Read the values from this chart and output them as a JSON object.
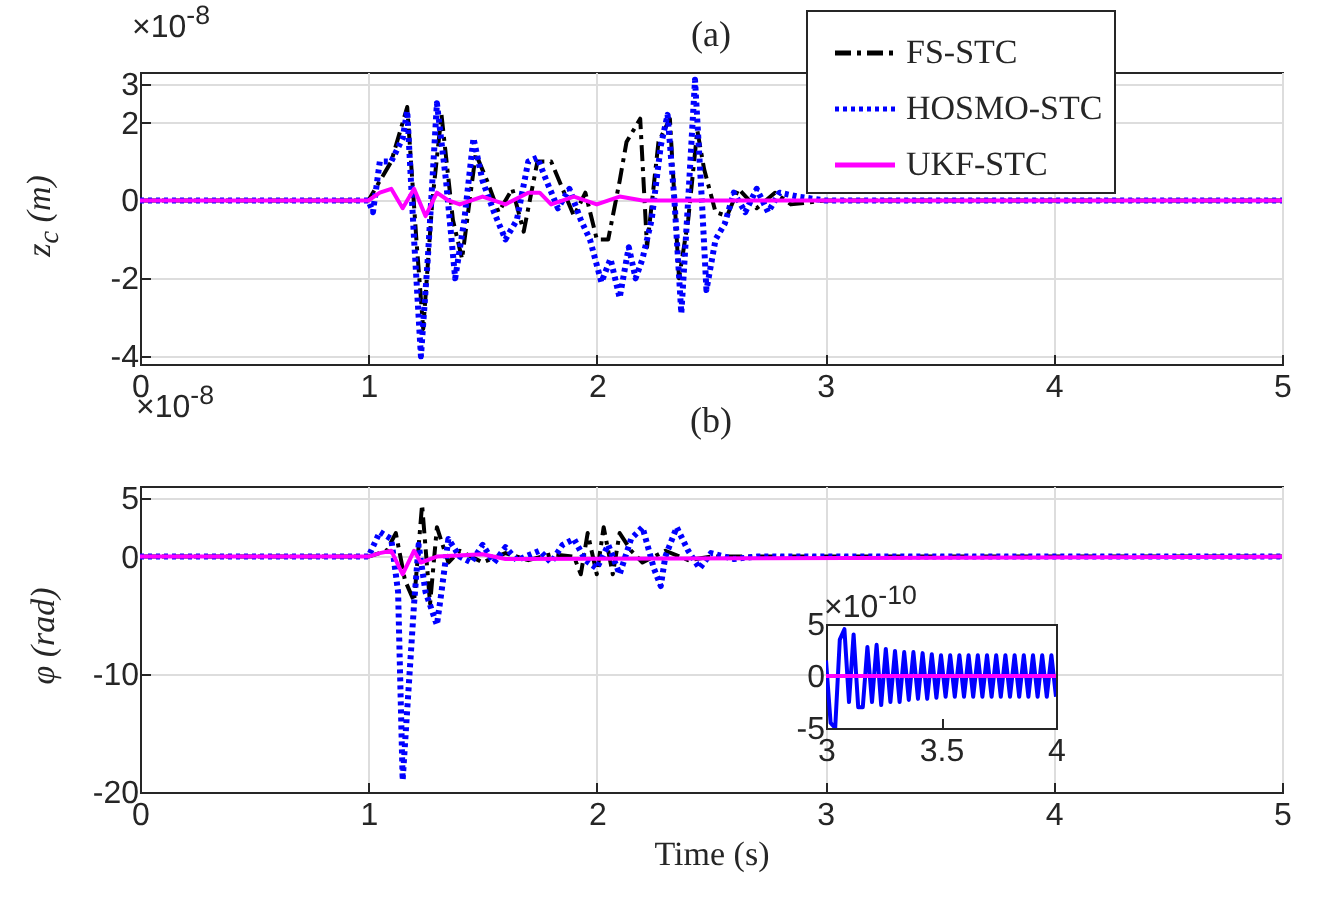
{
  "chart_data": [
    {
      "type": "line",
      "title": "(a)",
      "ylabel": "z$_{c}$ (m)",
      "annotations": [
        "×10$^{-8}$"
      ],
      "xlim": [
        0,
        5
      ],
      "xticks": [
        0,
        1,
        2,
        3,
        4,
        5
      ],
      "ylim": [
        -4.2,
        3.3
      ],
      "yticks": [
        -4,
        -2,
        0,
        2,
        3
      ],
      "grid": true,
      "legend": "top right",
      "series": [
        {
          "name": "FS-STC",
          "color": "#000000",
          "line_style": "dashed",
          "x": [
            0,
            1,
            1.05,
            1.1,
            1.17,
            1.21,
            1.24,
            1.28,
            1.32,
            1.37,
            1.41,
            1.47,
            1.52,
            1.57,
            1.63,
            1.68,
            1.74,
            1.8,
            1.85,
            1.9,
            1.95,
            2,
            2.05,
            2.1,
            2.13,
            2.19,
            2.22,
            2.27,
            2.32,
            2.36,
            2.4,
            2.44,
            2.47,
            2.52,
            2.57,
            2.62,
            2.7,
            2.78,
            2.85,
            3,
            5
          ],
          "values": [
            0,
            0,
            0.5,
            1,
            2.4,
            -1,
            -3.3,
            0,
            2.2,
            -0.5,
            -1.5,
            1.2,
            0.5,
            -0.3,
            0.3,
            -0.8,
            1,
            1,
            0.3,
            -0.4,
            0.2,
            -1,
            -1,
            0.5,
            1.5,
            2.1,
            -1.2,
            1.5,
            2.1,
            -2,
            -0.5,
            1.8,
            0.8,
            -0.3,
            -0.4,
            0.3,
            -0.2,
            0.2,
            -0.1,
            0,
            0
          ]
        },
        {
          "name": "HOSMO-STC",
          "color": "#0000ff",
          "line_style": "dotted",
          "x": [
            0,
            1,
            1.02,
            1.05,
            1.1,
            1.15,
            1.17,
            1.2,
            1.23,
            1.26,
            1.3,
            1.34,
            1.38,
            1.42,
            1.46,
            1.5,
            1.55,
            1.6,
            1.65,
            1.7,
            1.74,
            1.78,
            1.83,
            1.88,
            1.93,
            1.97,
            2.02,
            2.06,
            2.1,
            2.14,
            2.17,
            2.2,
            2.24,
            2.28,
            2.31,
            2.34,
            2.37,
            2.4,
            2.43,
            2.46,
            2.48,
            2.52,
            2.56,
            2.6,
            2.65,
            2.7,
            2.75,
            2.8,
            2.88,
            3,
            5
          ],
          "values": [
            0,
            0,
            -0.3,
            1,
            1,
            1.6,
            2.3,
            -1,
            -4,
            -1.5,
            2.5,
            0.5,
            -2,
            -0.5,
            1.6,
            0.5,
            -0.3,
            -1,
            -0.5,
            1,
            1.1,
            0.5,
            -0.2,
            0.3,
            -0.5,
            -1,
            -2.1,
            -1.5,
            -2.5,
            -1.2,
            -2,
            -1.5,
            -0.5,
            1.4,
            2.2,
            0,
            -2.9,
            0,
            3.1,
            0,
            -2.3,
            -1,
            -0.6,
            0.2,
            -0.3,
            0.3,
            -0.3,
            0.2,
            0.1,
            0,
            0
          ]
        },
        {
          "name": "UKF-STC",
          "color": "#ff00ff",
          "line_style": "solid",
          "x": [
            0,
            1,
            1.05,
            1.1,
            1.15,
            1.2,
            1.25,
            1.3,
            1.35,
            1.4,
            1.5,
            1.6,
            1.7,
            1.75,
            1.8,
            1.9,
            2,
            2.1,
            2.2,
            5
          ],
          "values": [
            0,
            0,
            0.2,
            0.3,
            -0.2,
            0.3,
            -0.4,
            0.2,
            0,
            -0.1,
            0.1,
            -0.1,
            0.2,
            0.2,
            -0.1,
            0.1,
            -0.1,
            0.1,
            0,
            0
          ]
        }
      ]
    },
    {
      "type": "line",
      "title": "(b)",
      "xlabel": "Time (s)",
      "ylabel": "φ (rad)",
      "annotations": [
        "×10$^{-8}$"
      ],
      "xlim": [
        0,
        5
      ],
      "xticks": [
        0,
        1,
        2,
        3,
        4,
        5
      ],
      "ylim": [
        -20,
        6
      ],
      "yticks": [
        -20,
        -10,
        0,
        5
      ],
      "grid": true,
      "series": [
        {
          "color": "#000000",
          "line_style": "dashed",
          "x": [
            0,
            1,
            1.08,
            1.12,
            1.16,
            1.2,
            1.235,
            1.27,
            1.3,
            1.35,
            1.4,
            1.5,
            1.6,
            1.7,
            1.8,
            1.9,
            1.93,
            1.96,
            2,
            2.03,
            2.07,
            2.1,
            2.15,
            2.2,
            2.3,
            2.4,
            2.5,
            5
          ],
          "values": [
            0,
            0,
            0.5,
            2,
            -2,
            -3.8,
            4.4,
            -4,
            2.5,
            -0.5,
            0.5,
            -0.5,
            0.3,
            -0.3,
            0.2,
            0,
            -1.5,
            2,
            -1.5,
            2.5,
            -1.5,
            2,
            0.5,
            -0.5,
            0.5,
            -0.3,
            0,
            0
          ]
        },
        {
          "color": "#0000ff",
          "line_style": "dotted",
          "x": [
            0,
            1,
            1.05,
            1.1,
            1.13,
            1.15,
            1.18,
            1.2,
            1.22,
            1.25,
            1.3,
            1.32,
            1.35,
            1.4,
            1.45,
            1.5,
            1.55,
            1.6,
            1.65,
            1.75,
            1.8,
            1.85,
            1.9,
            1.95,
            2,
            2.05,
            2.1,
            2.15,
            2.2,
            2.25,
            2.28,
            2.3,
            2.35,
            2.4,
            2.45,
            2.5,
            2.6,
            2.7,
            5
          ],
          "values": [
            0,
            0,
            2.1,
            1.5,
            -3,
            -19,
            -10,
            -4,
            1,
            -3,
            -5.8,
            -3,
            1.5,
            0,
            -0.5,
            1,
            -0.5,
            0.8,
            -0.3,
            0.5,
            -0.5,
            1,
            1.5,
            -0.3,
            -1,
            1,
            -1.5,
            1.5,
            2.5,
            -1,
            -2.5,
            0,
            2.5,
            0.5,
            -1,
            0.3,
            -0.2,
            0,
            0
          ]
        },
        {
          "color": "#ff00ff",
          "line_style": "solid",
          "x": [
            0,
            1,
            1.05,
            1.1,
            1.15,
            1.2,
            1.23,
            1.3,
            1.5,
            1.6,
            5
          ],
          "values": [
            0,
            0,
            0.3,
            0.5,
            -1.5,
            0.5,
            -0.5,
            0,
            0.2,
            -0.2,
            0
          ]
        }
      ]
    },
    {
      "type": "line",
      "annotations": [
        "×10$^{-10}$"
      ],
      "xlim": [
        3,
        4
      ],
      "xticks": [
        3,
        3.5,
        4
      ],
      "ylim": [
        -5,
        5
      ],
      "yticks": [
        -5,
        0,
        5
      ],
      "series": [
        {
          "color": "#0000ff",
          "x": [
            3,
            3.02,
            3.04,
            3.06,
            3.08,
            3.1,
            3.12,
            3.14,
            3.16,
            3.18,
            3.2,
            3.22,
            3.24,
            3.26,
            3.28,
            3.3,
            3.32,
            3.34,
            3.36,
            3.38,
            3.4,
            3.42,
            3.44,
            3.46,
            3.48,
            3.5,
            3.52,
            3.54,
            3.56,
            3.58,
            3.6,
            3.62,
            3.64,
            3.66,
            3.68,
            3.7,
            3.72,
            3.74,
            3.76,
            3.78,
            3.8,
            3.82,
            3.84,
            3.86,
            3.88,
            3.9,
            3.92,
            3.94,
            3.96,
            3.98,
            4
          ],
          "values": [
            1.5,
            -4.5,
            -5,
            3.5,
            4.5,
            -2.5,
            4,
            -3,
            -3,
            2.8,
            -2.5,
            3,
            -2.8,
            2.6,
            -2.5,
            2.4,
            -2.5,
            2.3,
            -2.3,
            2.3,
            -2.2,
            2.2,
            -2.2,
            2.1,
            -2.1,
            2,
            -2,
            2,
            -2,
            2,
            -2,
            2,
            -2,
            2,
            -2,
            2,
            -2,
            2,
            -2,
            2,
            -2,
            2,
            -2,
            2,
            -2,
            2,
            -2,
            2,
            -2,
            2,
            -2
          ]
        },
        {
          "color": "#ff00ff",
          "x": [
            3,
            4
          ],
          "values": [
            0,
            0
          ]
        }
      ]
    }
  ]
}
